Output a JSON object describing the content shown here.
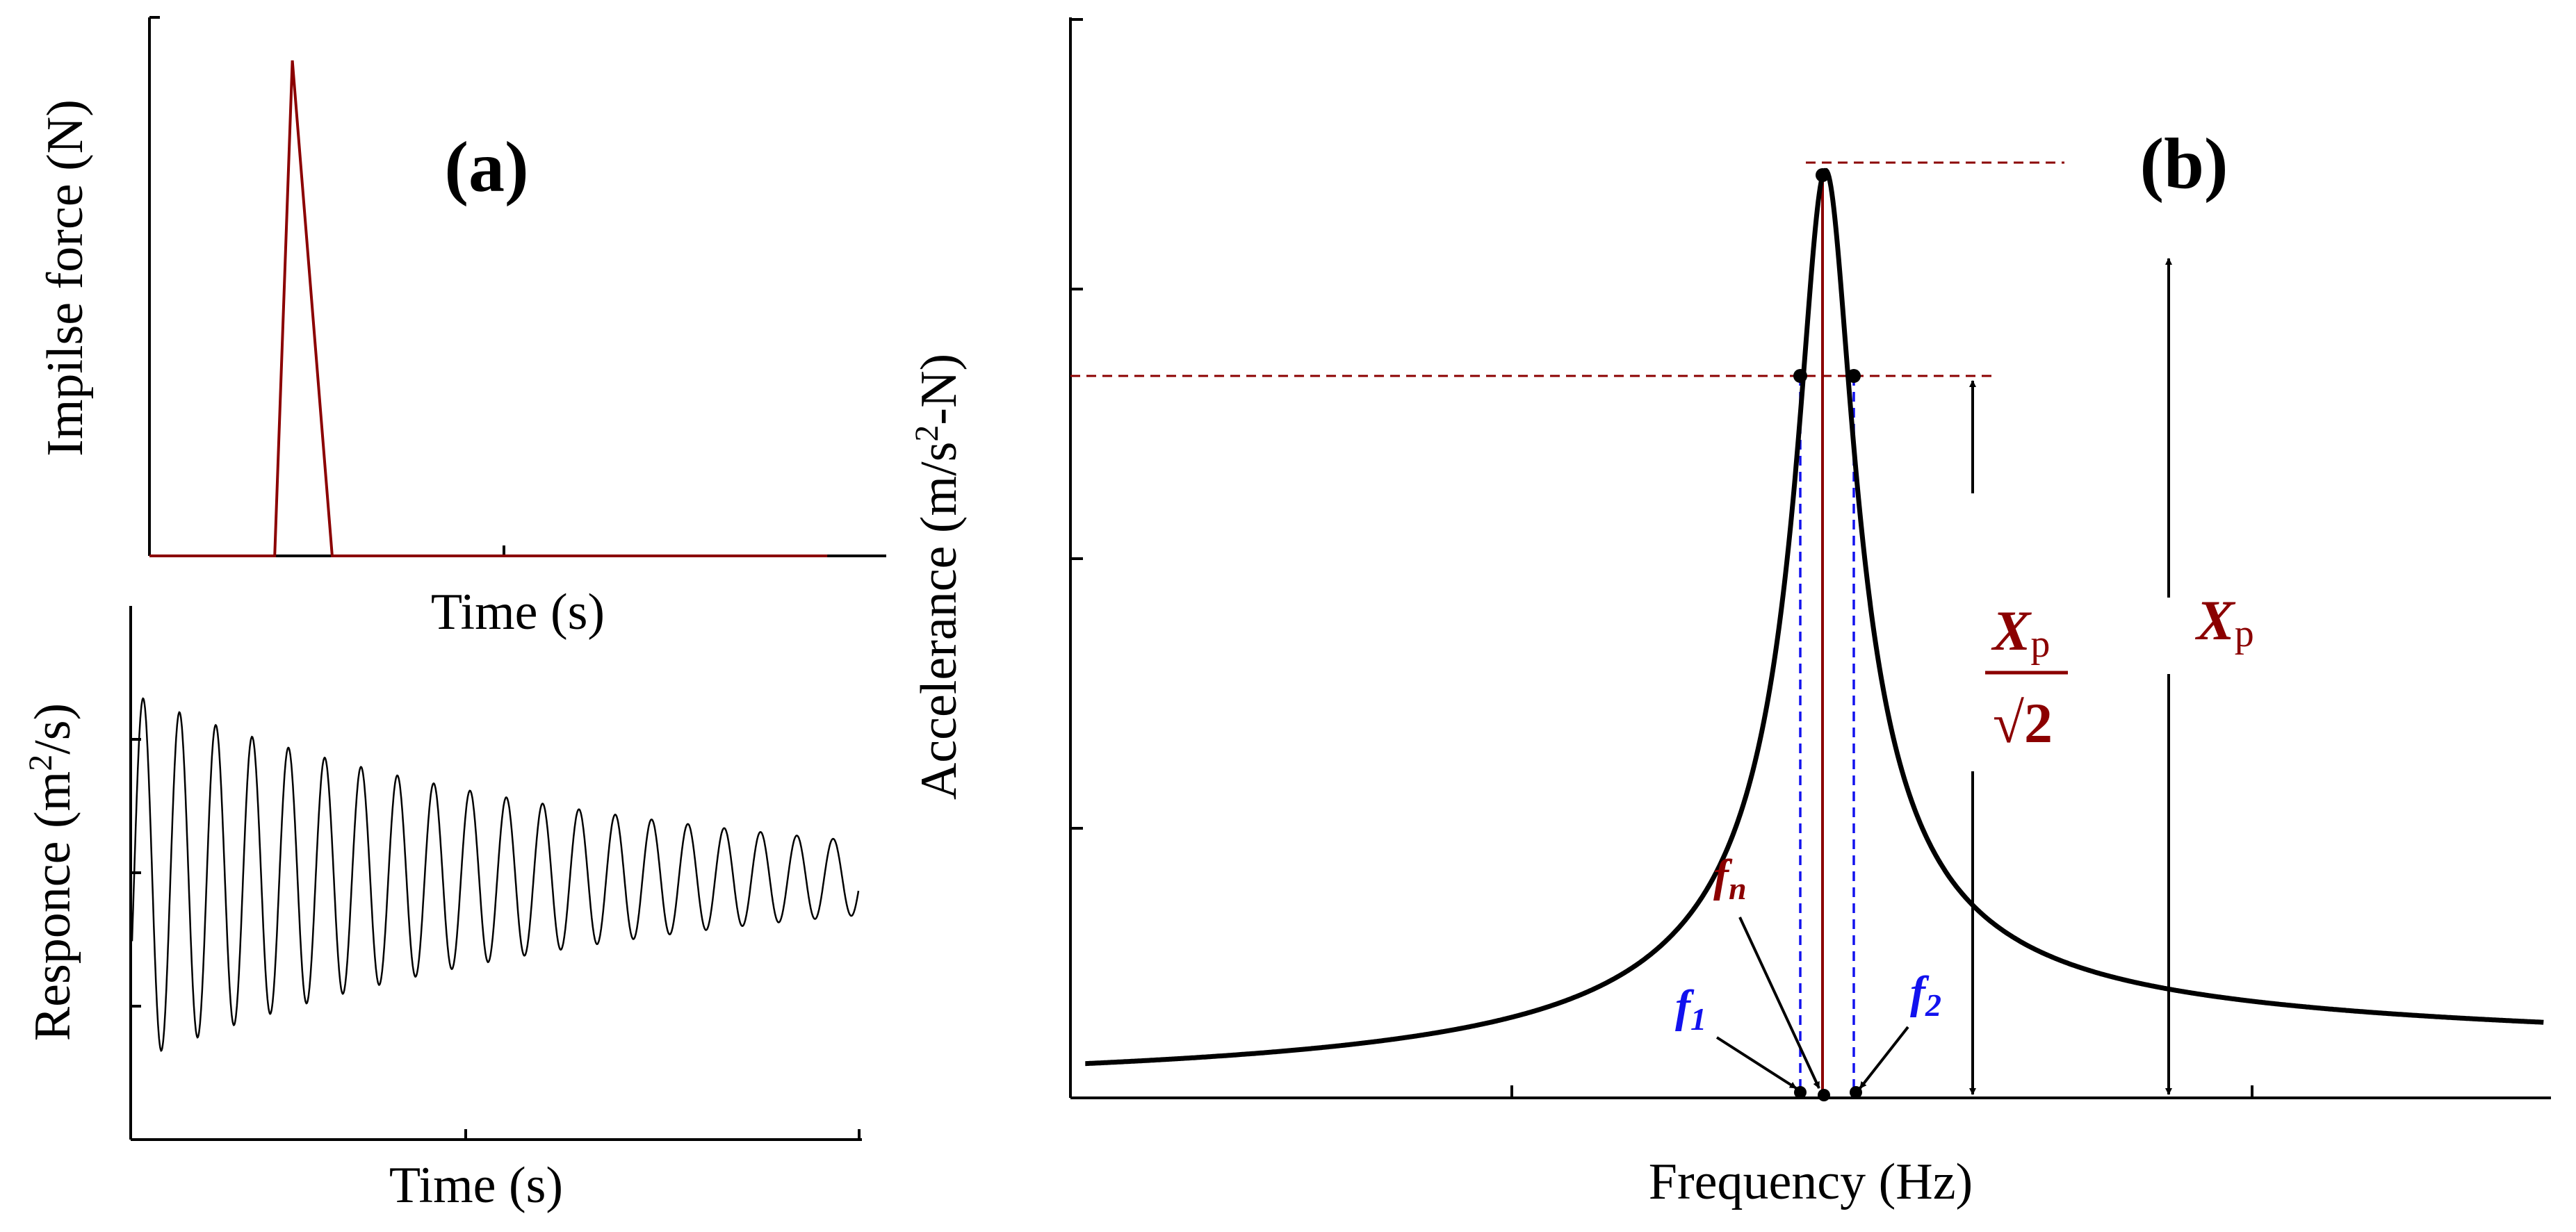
{
  "colors": {
    "dark_red": "#8b0000",
    "blue": "#1212ee",
    "black": "#000000"
  },
  "chart_data": [
    {
      "id": "a-top",
      "type": "line",
      "title": "",
      "panel_label": "(a)",
      "xlabel": "Time (s)",
      "ylabel": "Impilse force (N)",
      "xlim": [
        0,
        100
      ],
      "ylim": [
        0,
        100
      ],
      "xticks": [
        50
      ],
      "yticks": [
        100
      ],
      "series": [
        {
          "name": "impulse",
          "color": "#8b0000",
          "x": [
            0,
            17,
            19.4,
            24.8,
            92
          ],
          "y": [
            0,
            0,
            92,
            0,
            0
          ]
        }
      ]
    },
    {
      "id": "a-bottom",
      "type": "line",
      "title": "",
      "xlabel": "Time (s)",
      "ylabel_pre": "Responce (m",
      "ylabel_sup": "2",
      "ylabel_post": "/s)",
      "xlim": [
        0,
        100
      ],
      "ylim": [
        -1,
        1
      ],
      "xticks": [
        46,
        100
      ],
      "yticks": [
        0.5,
        0,
        -0.5
      ],
      "signal": {
        "amplitude": 0.69,
        "decay": 0.016,
        "cycles": 20,
        "offset": -0.02
      }
    },
    {
      "id": "b",
      "type": "line",
      "title": "",
      "panel_label": "(b)",
      "xlabel": "Frequency (Hz)",
      "ylabel_pre": "Accelerance (m/s",
      "ylabel_sup": "2",
      "ylabel_post": "-N)",
      "xlim": [
        0,
        100
      ],
      "ylim": [
        0,
        100
      ],
      "xticks": [
        30,
        80
      ],
      "yticks": [
        25,
        50,
        75,
        100
      ],
      "frf": {
        "fn": 51,
        "peak": 86,
        "half_width": 1.85,
        "edge_value": 1.3
      },
      "labels": {
        "fn": "f",
        "fn_sub": "n",
        "f1": "f",
        "f1_sub": "1",
        "f2": "f",
        "f2_sub": "2",
        "xp": "X",
        "xp_sub": "p",
        "frac_num": "X",
        "frac_num_sub": "p",
        "frac_den": "√2"
      }
    }
  ]
}
